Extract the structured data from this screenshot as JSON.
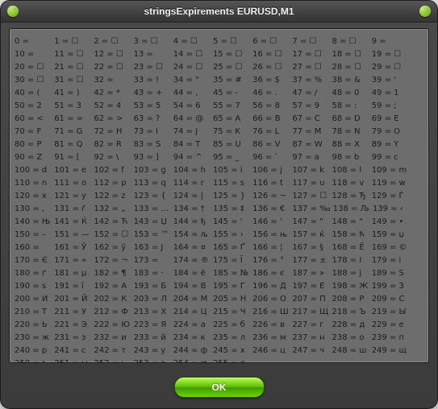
{
  "title": "stringsExpirements EURUSD,M1",
  "ok_label": "OK",
  "placeholder": "☐",
  "codes": {
    "0": "",
    "1": "☐",
    "2": "☐",
    "3": "☐",
    "4": "☐",
    "5": "☐",
    "6": "☐",
    "7": "☐",
    "8": "☐",
    "9": "",
    "10": "",
    "11": "☐",
    "12": "☐",
    "13": "",
    "14": "☐",
    "15": "☐",
    "16": "☐",
    "17": "☐",
    "18": "☐",
    "19": "☐",
    "20": "☐",
    "21": "☐",
    "22": "☐",
    "23": "☐",
    "24": "☐",
    "25": "☐",
    "26": "☐",
    "27": "☐",
    "28": "☐",
    "29": "☐",
    "30": "☐",
    "31": "☐",
    "32": "",
    "33": "!",
    "34": "\"",
    "35": "#",
    "36": "$",
    "37": "%",
    "38": "&",
    "39": "'",
    "40": "(",
    "41": ")",
    "42": "*",
    "43": "+",
    "44": ",",
    "45": "-",
    "46": ".",
    "47": "/",
    "48": "0",
    "49": "1",
    "50": "2",
    "51": "3",
    "52": "4",
    "53": "5",
    "54": "6",
    "55": "7",
    "56": "8",
    "57": "9",
    "58": ":",
    "59": ";",
    "60": "<",
    "61": "=",
    "62": ">",
    "63": "?",
    "64": "@",
    "65": "A",
    "66": "B",
    "67": "C",
    "68": "D",
    "69": "E",
    "70": "F",
    "71": "G",
    "72": "H",
    "73": "I",
    "74": "J",
    "75": "K",
    "76": "L",
    "77": "M",
    "78": "N",
    "79": "O",
    "80": "P",
    "81": "Q",
    "82": "R",
    "83": "S",
    "84": "T",
    "85": "U",
    "86": "V",
    "87": "W",
    "88": "X",
    "89": "Y",
    "90": "Z",
    "91": "[",
    "92": "\\",
    "93": "]",
    "94": "^",
    "95": "_",
    "96": "`",
    "97": "a",
    "98": "b",
    "99": "c",
    "100": "d",
    "101": "e",
    "102": "f",
    "103": "g",
    "104": "h",
    "105": "i",
    "106": "j",
    "107": "k",
    "108": "l",
    "109": "m",
    "110": "n",
    "111": "o",
    "112": "p",
    "113": "q",
    "114": "r",
    "115": "s",
    "116": "t",
    "117": "u",
    "118": "v",
    "119": "w",
    "120": "x",
    "121": "y",
    "122": "z",
    "123": "{",
    "124": "|",
    "125": "}",
    "126": "~",
    "127": "☐",
    "128": "Ђ",
    "129": "Ѓ",
    "130": "‚",
    "131": "ѓ",
    "132": "„",
    "133": "…",
    "134": "†",
    "135": "‡",
    "136": "€",
    "137": "‰",
    "138": "Љ",
    "139": "‹",
    "140": "Њ",
    "141": "Ќ",
    "142": "Ћ",
    "143": "Џ",
    "144": "ђ",
    "145": "'",
    "146": "'",
    "147": "\"",
    "148": "\"",
    "149": "•",
    "150": "–",
    "151": "—",
    "152": "☐",
    "153": "™",
    "154": "љ",
    "155": "›",
    "156": "њ",
    "157": "ќ",
    "158": "ћ",
    "159": "џ",
    "160": "",
    "161": "Ў",
    "162": "ў",
    "163": "Ј",
    "164": "¤",
    "165": "Ґ",
    "166": "¦",
    "167": "§",
    "168": "Ё",
    "169": "©",
    "170": "Є",
    "171": "«",
    "172": "¬",
    "173": "­",
    "174": "®",
    "175": "Ї",
    "176": "°",
    "177": "±",
    "178": "І",
    "179": "і",
    "180": "ґ",
    "181": "µ",
    "182": "¶",
    "183": "·",
    "184": "ё",
    "185": "№",
    "186": "є",
    "187": "»",
    "188": "ј",
    "189": "Ѕ",
    "190": "ѕ",
    "191": "ї",
    "192": "А",
    "193": "Б",
    "194": "В",
    "195": "Г",
    "196": "Д",
    "197": "Е",
    "198": "Ж",
    "199": "З",
    "200": "И",
    "201": "Й",
    "202": "К",
    "203": "Л",
    "204": "М",
    "205": "Н",
    "206": "О",
    "207": "П",
    "208": "Р",
    "209": "С",
    "210": "Т",
    "211": "У",
    "212": "Ф",
    "213": "Х",
    "214": "Ц",
    "215": "Ч",
    "216": "Ш",
    "217": "Щ",
    "218": "Ъ",
    "219": "Ы",
    "220": "Ь",
    "221": "Э",
    "222": "Ю",
    "223": "Я",
    "224": "а",
    "225": "б",
    "226": "в",
    "227": "г",
    "228": "д",
    "229": "е",
    "230": "ж",
    "231": "з",
    "232": "и",
    "233": "й",
    "234": "к",
    "235": "л",
    "236": "м",
    "237": "н",
    "238": "о",
    "239": "п",
    "240": "р",
    "241": "с",
    "242": "т",
    "243": "у",
    "244": "ф",
    "245": "х",
    "246": "ц",
    "247": "ч",
    "248": "ш",
    "249": "щ",
    "250": "ъ",
    "251": "ы",
    "252": "ь",
    "253": "э",
    "254": "ю",
    "255": "я"
  }
}
